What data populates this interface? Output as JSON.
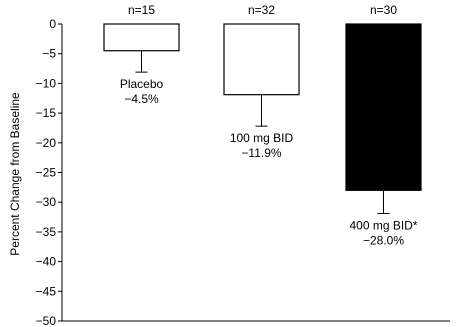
{
  "chart_data": {
    "type": "bar",
    "categories": [
      "Placebo",
      "100 mg BID",
      "400 mg BID*"
    ],
    "values": [
      -4.5,
      -11.9,
      -28.0
    ],
    "error_bars": [
      3.6,
      5.3,
      3.9
    ],
    "n_labels": [
      "n=15",
      "n=32",
      "n=30"
    ],
    "bar_labels": [
      {
        "name": "Placebo",
        "value": "−4.5%"
      },
      {
        "name": "100 mg BID",
        "value": "−11.9%"
      },
      {
        "name": "400 mg BID*",
        "value": "−28.0%"
      }
    ],
    "bar_fills": [
      "#ffffff",
      "#ffffff",
      "#000000"
    ],
    "title": "",
    "xlabel": "",
    "ylabel": "Percent Change from Baseline",
    "ylim": [
      -50,
      0
    ],
    "yticks": [
      0,
      -5,
      -10,
      -15,
      -20,
      -25,
      -30,
      -35,
      -40,
      -45,
      -50
    ],
    "ytick_labels": [
      "0",
      "−5",
      "−10",
      "−15",
      "−20",
      "−25",
      "−30",
      "−35",
      "−40",
      "−45",
      "−50"
    ],
    "grid": false,
    "legend": "none"
  }
}
